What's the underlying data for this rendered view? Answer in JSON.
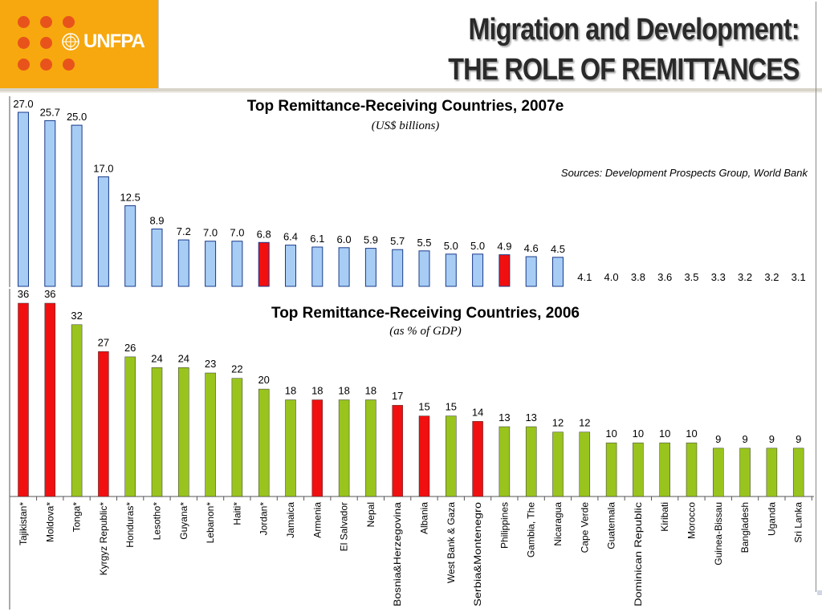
{
  "header": {
    "logo_text": "UNFPA",
    "title_line1": "Migration and Development:",
    "title_line2": "THE ROLE OF REMITTANCES"
  },
  "colors": {
    "logo_background": "#f7a80e",
    "logo_dots": "#e8531c",
    "bar_blue": "#a7cdf5",
    "bar_green": "#99c41e",
    "bar_red": "#f20f0f"
  },
  "chart_data": [
    {
      "type": "bar",
      "title": "Top Remittance-Receiving Countries, 2007e",
      "subtitle": "(US$ billions)",
      "source": "Sources: Development Prospects Group, World Bank",
      "values": [
        27.0,
        25.7,
        25.0,
        17.0,
        12.5,
        8.9,
        7.2,
        7.0,
        7.0,
        6.8,
        6.4,
        6.1,
        6.0,
        5.9,
        5.7,
        5.5,
        5.0,
        5.0,
        4.9,
        4.6,
        4.5,
        4.1,
        4.0,
        3.8,
        3.6,
        3.5,
        3.3,
        3.2,
        3.2,
        3.1
      ],
      "value_labels": [
        "27.0",
        "25.7",
        "25.0",
        "17.0",
        "12.5",
        "8.9",
        "7.2",
        "7.0",
        "7.0",
        "6.8",
        "6.4",
        "6.1",
        "6.0",
        "5.9",
        "5.7",
        "5.5",
        "5.0",
        "5.0",
        "4.9",
        "4.6",
        "4.5",
        "4.1",
        "4.0",
        "3.8",
        "3.6",
        "3.5",
        "3.3",
        "3.2",
        "3.2",
        "3.1"
      ],
      "highlighted": [
        9,
        18
      ],
      "ylim": [
        0,
        27.0
      ],
      "grid": false
    },
    {
      "type": "bar",
      "title": "Top Remittance-Receiving Countries, 2006",
      "subtitle": "(as % of GDP)",
      "categories": [
        "Tajikistan*",
        "Moldova*",
        "Tonga*",
        "Kyrgyz Republic*",
        "Honduras*",
        "Lesotho*",
        "Guyana*",
        "Lebanon*",
        "Haiti*",
        "Jordan*",
        "Jamaica",
        "Armenia",
        "El Salvador",
        "Nepal",
        "Bosnia&Herzegovina",
        "Albania",
        "West Bank & Gaza",
        "Serbia&Montenegro",
        "Philippines",
        "Gambia, The",
        "Nicaragua",
        "Cape Verde",
        "Guatemala",
        "Dominican Republic",
        "Kiribati",
        "Morocco",
        "Guinea-Bissau",
        "Bangladesh",
        "Uganda",
        "Sri Lanka"
      ],
      "values": [
        36,
        36,
        32,
        27,
        26,
        24,
        24,
        23,
        22,
        20,
        18,
        18,
        18,
        18,
        17,
        15,
        15,
        14,
        13,
        13,
        12,
        12,
        10,
        10,
        10,
        10,
        9,
        9,
        9,
        9
      ],
      "value_labels": [
        "36",
        "36",
        "32",
        "27",
        "26",
        "24",
        "24",
        "23",
        "22",
        "20",
        "18",
        "18",
        "18",
        "18",
        "17",
        "15",
        "15",
        "14",
        "13",
        "13",
        "12",
        "12",
        "10",
        "10",
        "10",
        "10",
        "9",
        "9",
        "9",
        "9"
      ],
      "highlighted": [
        0,
        1,
        3,
        11,
        14,
        15,
        17
      ],
      "ylim": [
        0,
        36
      ],
      "grid": false
    }
  ]
}
